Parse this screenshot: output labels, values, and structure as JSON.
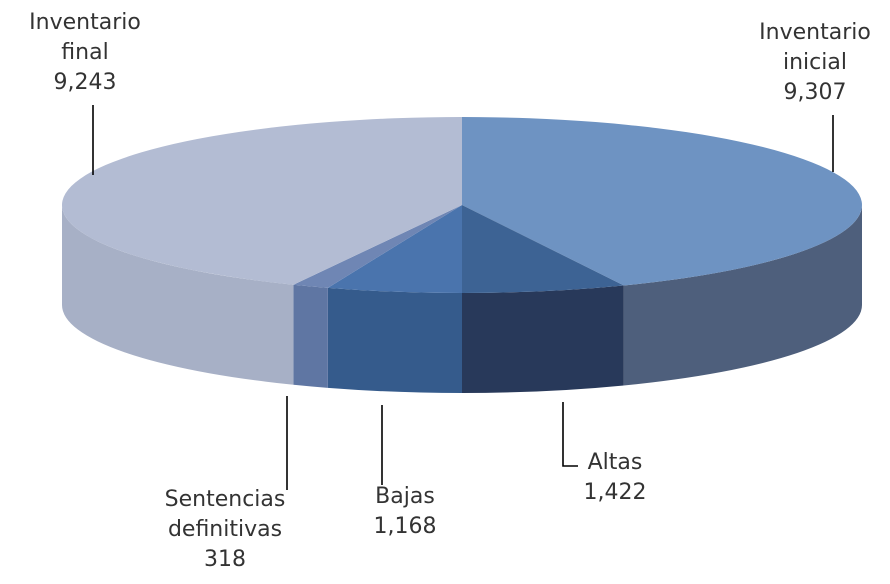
{
  "chart_data": {
    "type": "pie3d",
    "categories": [
      "Inventario inicial",
      "Altas",
      "Bajas",
      "Sentencias definitivas",
      "Inventario final"
    ],
    "values": [
      9307,
      1422,
      1168,
      318,
      9243
    ],
    "value_labels": [
      "9,307",
      "1,422",
      "1,168",
      "318",
      "9,243"
    ],
    "colors": [
      "#6e93c2",
      "#3d6394",
      "#4a74ad",
      "#6f86b4",
      "#b3bcd3"
    ],
    "side_colors": [
      "#4e5f7c",
      "#28395a",
      "#355b8c",
      "#5f76a3",
      "#a7b0c6"
    ]
  }
}
